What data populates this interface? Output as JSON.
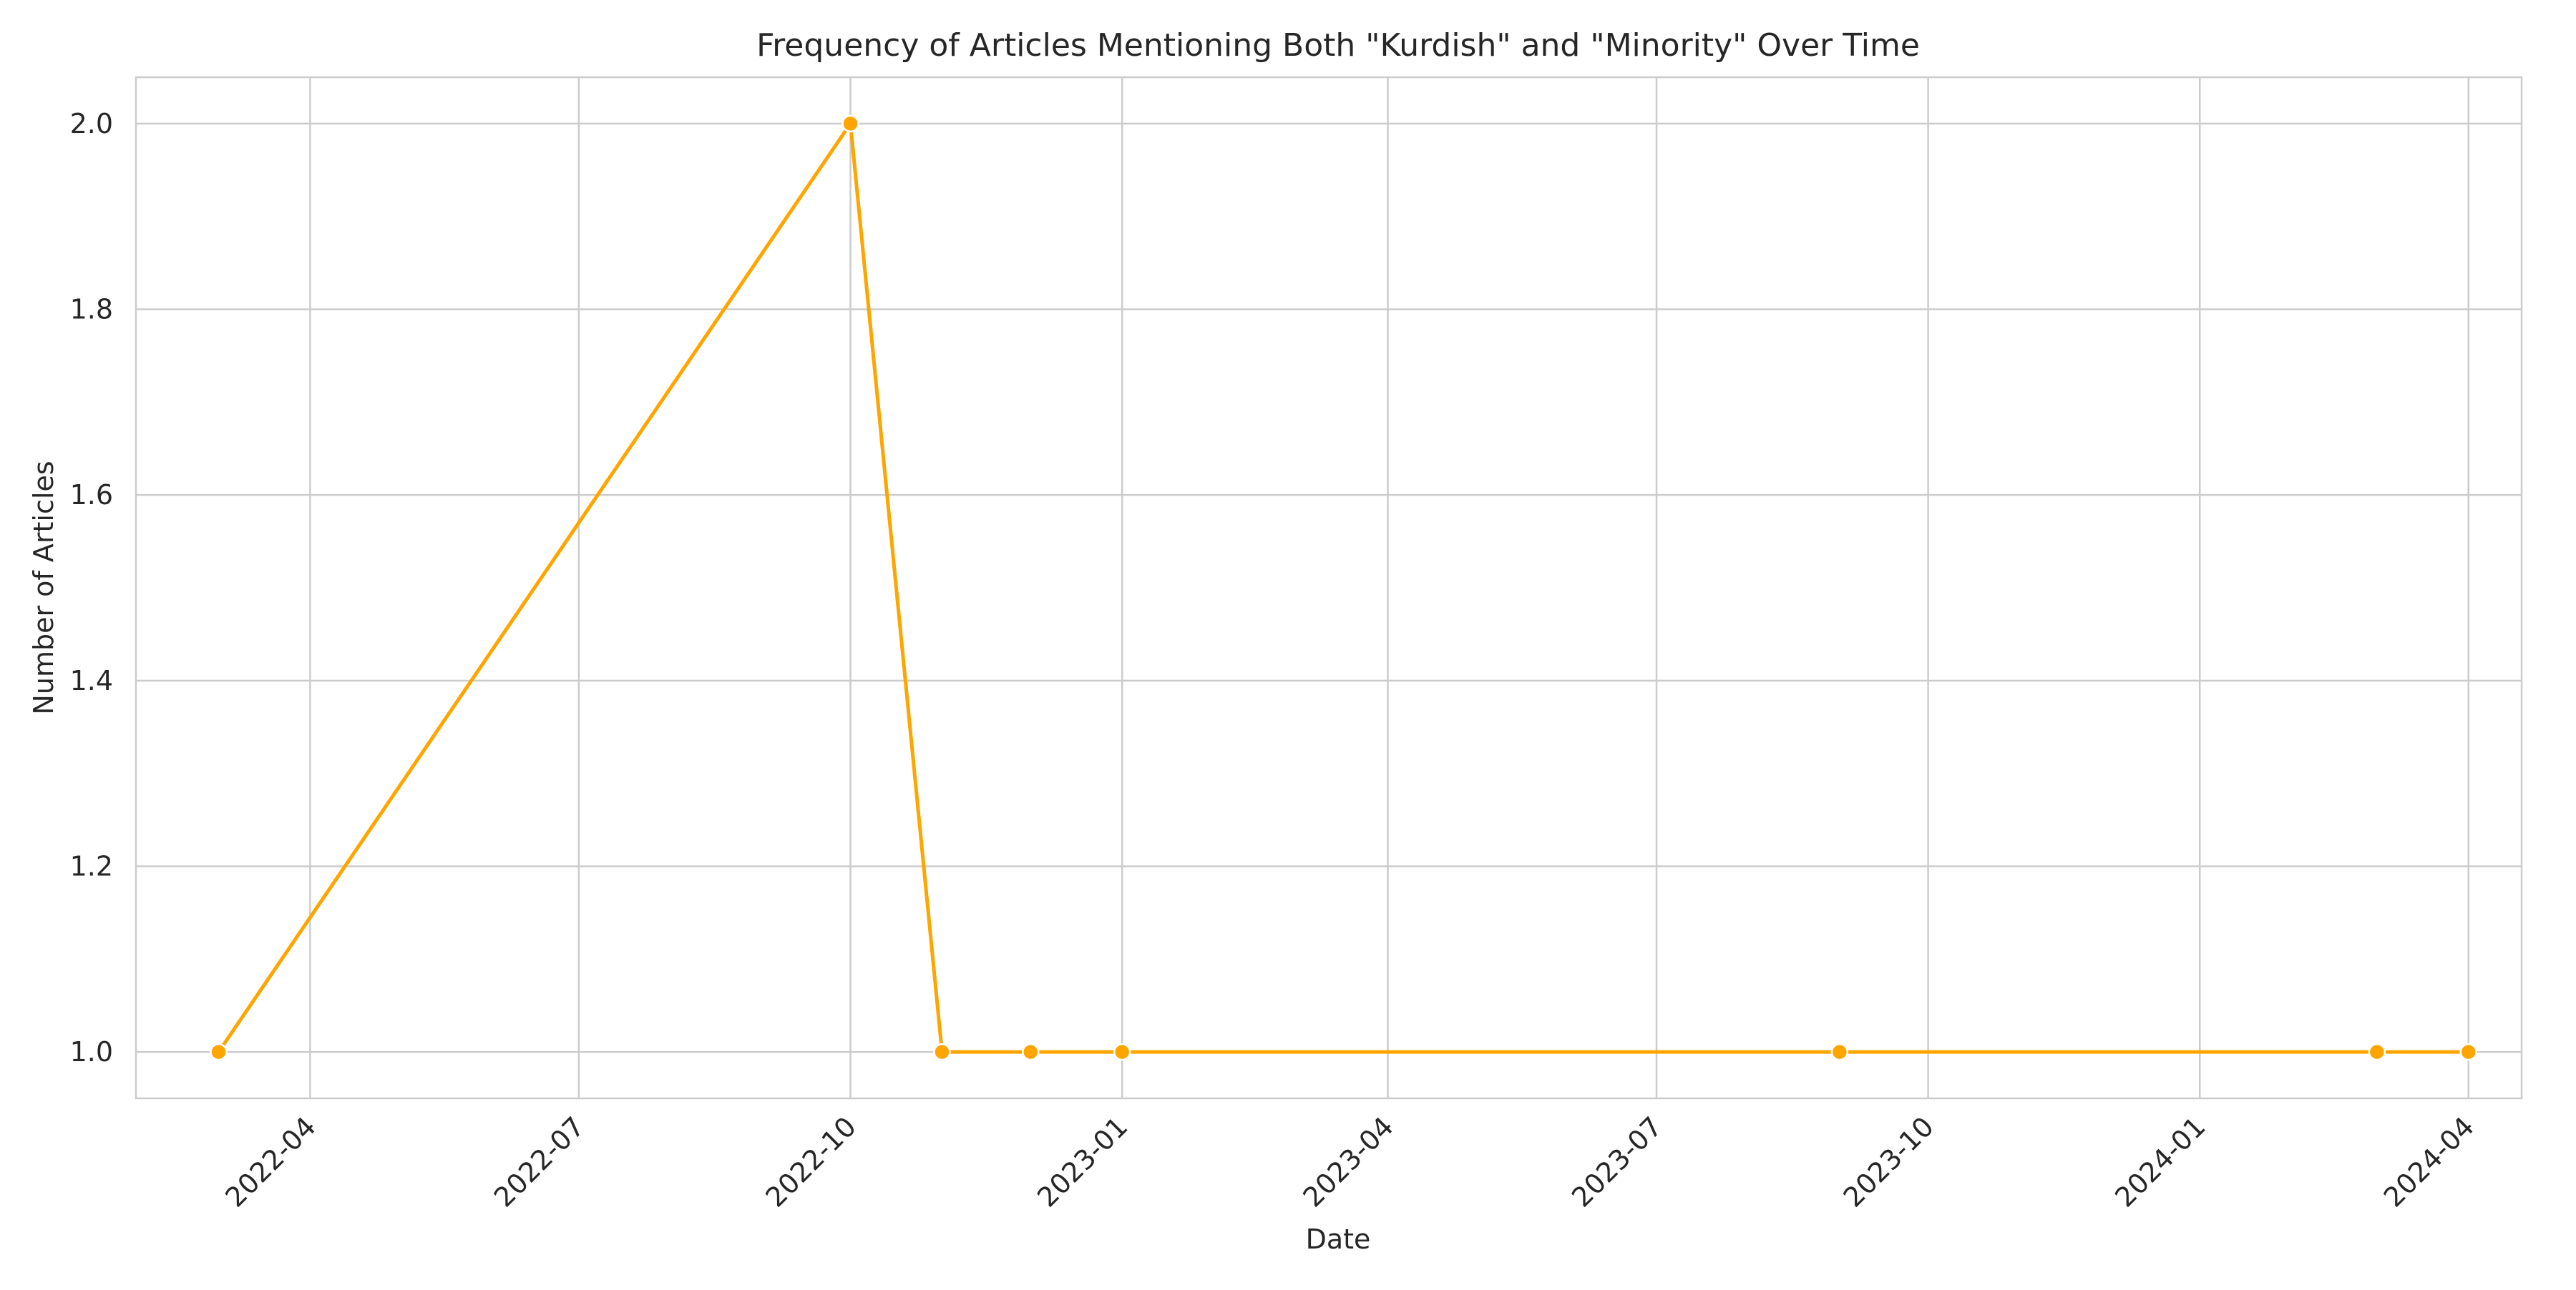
{
  "chart_data": {
    "type": "line",
    "title": "Frequency of Articles Mentioning Both \"Kurdish\" and \"Minority\" Over Time",
    "xlabel": "Date",
    "ylabel": "Number of Articles",
    "x_type": "date",
    "xlim": [
      "2022-02-01",
      "2024-04-19"
    ],
    "ylim": [
      0.95,
      2.05
    ],
    "x_ticks": [
      "2022-04",
      "2022-07",
      "2022-10",
      "2023-01",
      "2023-04",
      "2023-07",
      "2023-10",
      "2024-01",
      "2024-04"
    ],
    "y_ticks": [
      1.0,
      1.2,
      1.4,
      1.6,
      1.8,
      2.0
    ],
    "y_tick_labels": [
      "1.0",
      "1.2",
      "1.4",
      "1.6",
      "1.8",
      "2.0"
    ],
    "grid": true,
    "legend": "none",
    "series": [
      {
        "color": "#FFA500",
        "points": [
          {
            "x": "2022-03-01",
            "y": 1
          },
          {
            "x": "2022-10-01",
            "y": 2
          },
          {
            "x": "2022-11-01",
            "y": 1
          },
          {
            "x": "2022-12-01",
            "y": 1
          },
          {
            "x": "2023-01-01",
            "y": 1
          },
          {
            "x": "2023-09-01",
            "y": 1
          },
          {
            "x": "2024-03-01",
            "y": 1
          },
          {
            "x": "2024-04-01",
            "y": 1
          }
        ]
      }
    ]
  },
  "colors": {
    "line": "#FFA500",
    "grid": "#cccccc",
    "axes_frame": "#cccccc",
    "background": "#ffffff",
    "text": "#262626"
  }
}
